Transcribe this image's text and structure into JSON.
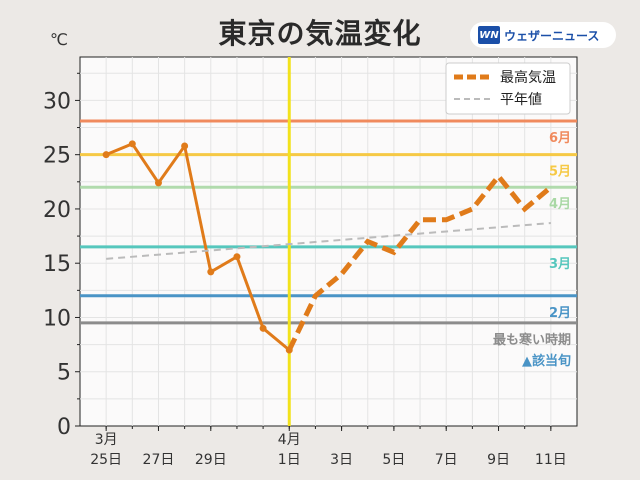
{
  "title": "東京の気温変化",
  "unit": "℃",
  "logo": {
    "mark": "WN",
    "text": "ウェザーニュース"
  },
  "colors": {
    "forecast": "#e07b1a",
    "normal": "#bbbbbb",
    "today_line": "#f2e21c",
    "jun": "#f08a5d",
    "may": "#f6c945",
    "apr": "#a9d8a5",
    "mar": "#56c7bd",
    "feb": "#4a94c6",
    "coldest": "#8c8c8c",
    "marker_text": "#4a94c6"
  },
  "chart_data": {
    "type": "line",
    "ylim": [
      0,
      34
    ],
    "yticks": [
      0,
      5,
      10,
      15,
      20,
      25,
      30
    ],
    "xlim": [
      -1,
      18
    ],
    "x_ticks": [
      {
        "x": 0,
        "label": "3月\n25日"
      },
      {
        "x": 2,
        "label": "27日"
      },
      {
        "x": 4,
        "label": "29日"
      },
      {
        "x": 7,
        "label": "4月\n1日"
      },
      {
        "x": 9,
        "label": "3日"
      },
      {
        "x": 11,
        "label": "5日"
      },
      {
        "x": 13,
        "label": "7日"
      },
      {
        "x": 15,
        "label": "9日"
      },
      {
        "x": 17,
        "label": "11日"
      }
    ],
    "today_x": 7,
    "series": [
      {
        "name": "最高気温",
        "style": "solid",
        "x": [
          0,
          1,
          2,
          3,
          4,
          5,
          6,
          7
        ],
        "values": [
          25.0,
          26.0,
          22.4,
          25.8,
          14.2,
          15.6,
          9.0,
          7.0
        ]
      },
      {
        "name": "最高気温",
        "style": "dashed",
        "x": [
          7,
          8,
          9,
          10,
          11,
          12,
          13,
          14,
          15,
          16,
          17
        ],
        "values": [
          7.0,
          12.0,
          14.0,
          17.0,
          16.0,
          19.0,
          19.0,
          20.0,
          23.0,
          20.0,
          22.0
        ]
      },
      {
        "name": "平年値",
        "style": "normal",
        "x": [
          0,
          17
        ],
        "values": [
          15.4,
          18.7
        ]
      }
    ],
    "reference_lines": [
      {
        "label": "6月",
        "value": 28.1,
        "color_key": "jun"
      },
      {
        "label": "5月",
        "value": 25.0,
        "color_key": "may"
      },
      {
        "label": "4月",
        "value": 22.0,
        "color_key": "apr"
      },
      {
        "label": "3月",
        "value": 16.5,
        "color_key": "mar"
      },
      {
        "label": "2月",
        "value": 12.0,
        "color_key": "feb"
      },
      {
        "label": "最も寒い時期",
        "value": 9.5,
        "color_key": "coldest"
      }
    ],
    "marker_label": "▲該当旬",
    "legend": [
      {
        "label": "最高気温",
        "style": "dashed"
      },
      {
        "label": "平年値",
        "style": "normal"
      }
    ],
    "legend_position": "top-right",
    "grid": true
  }
}
